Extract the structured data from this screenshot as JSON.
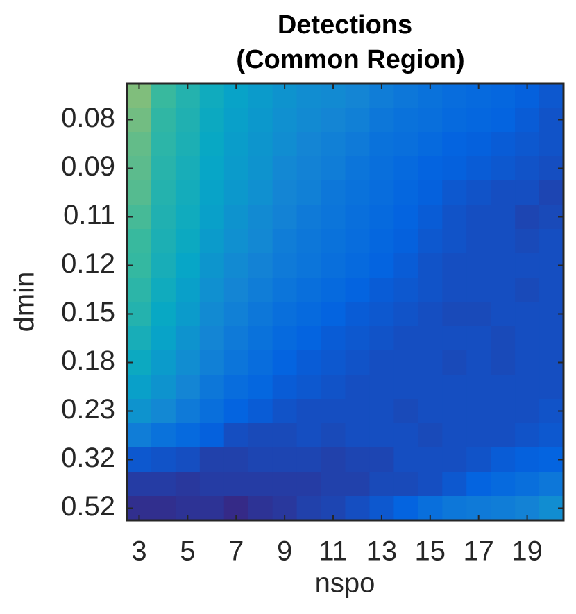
{
  "chart_data": {
    "type": "heatmap",
    "title": [
      "Detections",
      "(Common Region)"
    ],
    "xlabel": "nspo",
    "ylabel": "dmin",
    "x": [
      3,
      4,
      5,
      6,
      7,
      8,
      9,
      10,
      11,
      12,
      13,
      14,
      15,
      16,
      17,
      18,
      19,
      20
    ],
    "xlim": [
      2.5,
      20.5
    ],
    "xticks": [
      3,
      5,
      7,
      9,
      11,
      13,
      15,
      17,
      19
    ],
    "categories": [
      null,
      "0.08",
      null,
      "0.09",
      null,
      "0.11",
      null,
      "0.12",
      null,
      "0.15",
      null,
      "0.18",
      null,
      "0.23",
      null,
      "0.32",
      null,
      "0.52"
    ],
    "clim": [
      0,
      1
    ],
    "colormap": [
      "#352a87",
      "#0363e1",
      "#1485d4",
      "#06a7c6",
      "#38b99e",
      "#92bf73",
      "#d9ba56",
      "#fcce2e",
      "#f9fb0e"
    ],
    "values": [
      [
        0.6,
        0.5,
        0.45,
        0.4,
        0.36,
        0.33,
        0.3,
        0.28,
        0.27,
        0.25,
        0.22,
        0.2,
        0.18,
        0.16,
        0.15,
        0.14,
        0.12,
        0.1
      ],
      [
        0.58,
        0.48,
        0.44,
        0.39,
        0.35,
        0.32,
        0.29,
        0.27,
        0.25,
        0.23,
        0.2,
        0.18,
        0.17,
        0.15,
        0.14,
        0.13,
        0.11,
        0.09
      ],
      [
        0.56,
        0.47,
        0.43,
        0.38,
        0.34,
        0.31,
        0.28,
        0.25,
        0.23,
        0.21,
        0.18,
        0.17,
        0.15,
        0.13,
        0.12,
        0.11,
        0.1,
        0.09
      ],
      [
        0.55,
        0.46,
        0.42,
        0.37,
        0.33,
        0.3,
        0.26,
        0.24,
        0.22,
        0.19,
        0.17,
        0.15,
        0.13,
        0.12,
        0.11,
        0.1,
        0.09,
        0.08
      ],
      [
        0.54,
        0.45,
        0.41,
        0.36,
        0.32,
        0.29,
        0.25,
        0.23,
        0.2,
        0.18,
        0.16,
        0.14,
        0.12,
        0.1,
        0.09,
        0.08,
        0.08,
        0.06
      ],
      [
        0.52,
        0.44,
        0.4,
        0.35,
        0.3,
        0.27,
        0.24,
        0.21,
        0.19,
        0.17,
        0.15,
        0.13,
        0.11,
        0.09,
        0.08,
        0.08,
        0.06,
        0.07
      ],
      [
        0.5,
        0.43,
        0.39,
        0.33,
        0.29,
        0.26,
        0.22,
        0.2,
        0.18,
        0.16,
        0.14,
        0.12,
        0.1,
        0.09,
        0.08,
        0.08,
        0.07,
        0.08
      ],
      [
        0.49,
        0.42,
        0.37,
        0.31,
        0.27,
        0.24,
        0.21,
        0.19,
        0.17,
        0.15,
        0.13,
        0.11,
        0.09,
        0.08,
        0.08,
        0.08,
        0.08,
        0.08
      ],
      [
        0.47,
        0.4,
        0.35,
        0.29,
        0.25,
        0.22,
        0.19,
        0.17,
        0.15,
        0.13,
        0.11,
        0.1,
        0.09,
        0.08,
        0.08,
        0.08,
        0.07,
        0.08
      ],
      [
        0.45,
        0.38,
        0.33,
        0.27,
        0.23,
        0.2,
        0.17,
        0.15,
        0.13,
        0.11,
        0.1,
        0.09,
        0.08,
        0.07,
        0.07,
        0.08,
        0.08,
        0.08
      ],
      [
        0.42,
        0.36,
        0.3,
        0.25,
        0.21,
        0.18,
        0.15,
        0.13,
        0.11,
        0.1,
        0.09,
        0.08,
        0.08,
        0.08,
        0.08,
        0.07,
        0.08,
        0.08
      ],
      [
        0.39,
        0.33,
        0.28,
        0.23,
        0.19,
        0.16,
        0.13,
        0.11,
        0.1,
        0.09,
        0.08,
        0.08,
        0.08,
        0.07,
        0.08,
        0.07,
        0.08,
        0.08
      ],
      [
        0.35,
        0.3,
        0.25,
        0.2,
        0.16,
        0.14,
        0.11,
        0.1,
        0.09,
        0.08,
        0.08,
        0.08,
        0.08,
        0.08,
        0.08,
        0.08,
        0.08,
        0.08
      ],
      [
        0.3,
        0.26,
        0.21,
        0.17,
        0.13,
        0.11,
        0.09,
        0.08,
        0.08,
        0.08,
        0.08,
        0.07,
        0.08,
        0.08,
        0.08,
        0.08,
        0.08,
        0.09
      ],
      [
        0.22,
        0.18,
        0.15,
        0.12,
        0.08,
        0.07,
        0.07,
        0.08,
        0.07,
        0.08,
        0.08,
        0.08,
        0.07,
        0.08,
        0.08,
        0.08,
        0.09,
        0.1
      ],
      [
        0.1,
        0.09,
        0.08,
        0.05,
        0.05,
        0.06,
        0.06,
        0.06,
        0.05,
        0.06,
        0.06,
        0.08,
        0.08,
        0.08,
        0.09,
        0.11,
        0.12,
        0.13
      ],
      [
        0.04,
        0.04,
        0.03,
        0.04,
        0.04,
        0.04,
        0.04,
        0.04,
        0.05,
        0.05,
        0.07,
        0.07,
        0.08,
        0.1,
        0.13,
        0.15,
        0.17,
        0.2
      ],
      [
        0.01,
        0.01,
        0.02,
        0.02,
        0.0,
        0.02,
        0.03,
        0.05,
        0.06,
        0.08,
        0.1,
        0.13,
        0.17,
        0.2,
        0.21,
        0.22,
        0.24,
        0.28
      ]
    ]
  }
}
